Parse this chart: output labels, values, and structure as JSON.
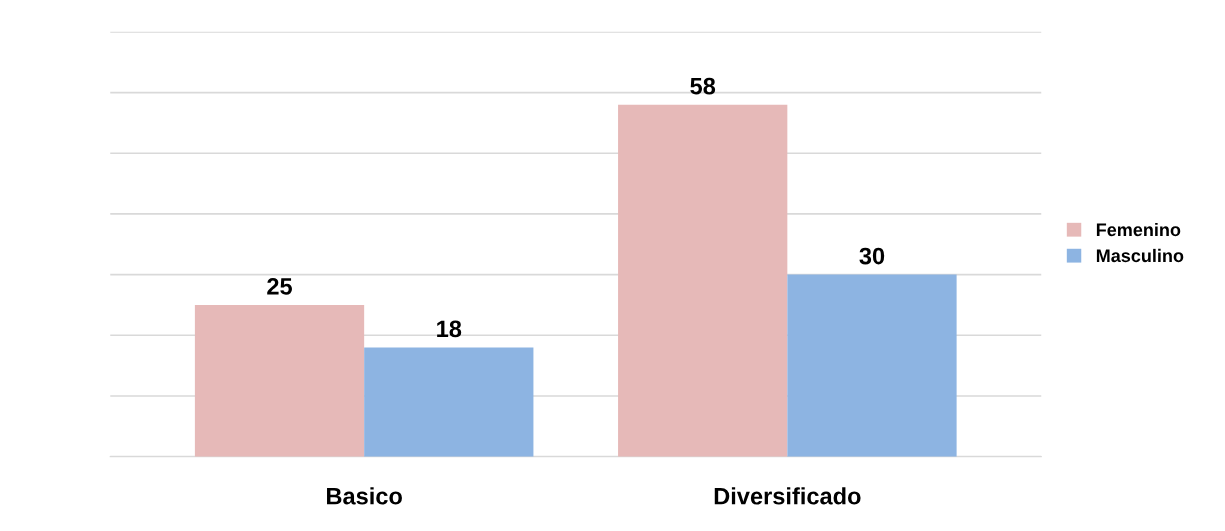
{
  "chart_data": {
    "type": "bar",
    "categories": [
      "Basico",
      "Diversificado"
    ],
    "series": [
      {
        "name": "Femenino",
        "color": "#e6b9b8",
        "values": [
          25,
          58
        ]
      },
      {
        "name": "Masculino",
        "color": "#8db4e2",
        "values": [
          18,
          30
        ]
      }
    ],
    "ylim": [
      0,
      70
    ],
    "yticks": [
      {
        "value": 0,
        "label": null
      },
      {
        "value": 10,
        "label": null
      },
      {
        "value": 20,
        "label": null
      },
      {
        "value": 30,
        "label": null
      },
      {
        "value": 40,
        "label": null
      },
      {
        "value": 50,
        "label": null
      },
      {
        "value": 60,
        "label": null
      },
      {
        "value": 70,
        "label": null
      }
    ],
    "grid": "y",
    "legend": "right",
    "data_labels": true
  }
}
